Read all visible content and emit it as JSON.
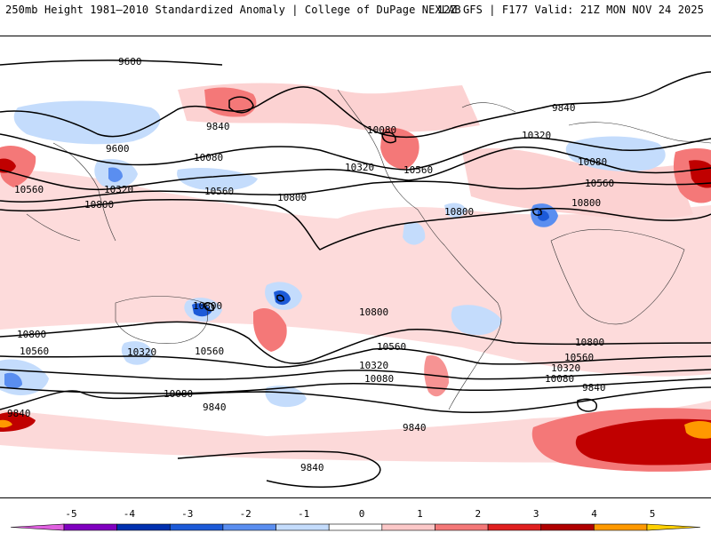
{
  "header": {
    "title_left": "250mb Height 1981–2010 Standardized Anomaly | College of DuPage NEXLAB",
    "title_right": "12Z GFS | F177 Valid: 21Z MON NOV 24 2025"
  },
  "contours": [
    {
      "label": "9600"
    },
    {
      "label": "9840"
    },
    {
      "label": "10080"
    },
    {
      "label": "10320"
    },
    {
      "label": "10560"
    },
    {
      "label": "10800"
    }
  ],
  "legend": {
    "ticks": [
      "-5",
      "-4",
      "-3",
      "-2",
      "-1",
      "0",
      "1",
      "2",
      "3",
      "4",
      "5"
    ],
    "colors": [
      "#e060e0",
      "#8000c0",
      "#0030b0",
      "#1c5ad8",
      "#5a8ef0",
      "#c4dcfc",
      "#ffffff",
      "#fcc8c8",
      "#f47878",
      "#e02020",
      "#b00000",
      "#ff9900",
      "#ffd000"
    ]
  }
}
